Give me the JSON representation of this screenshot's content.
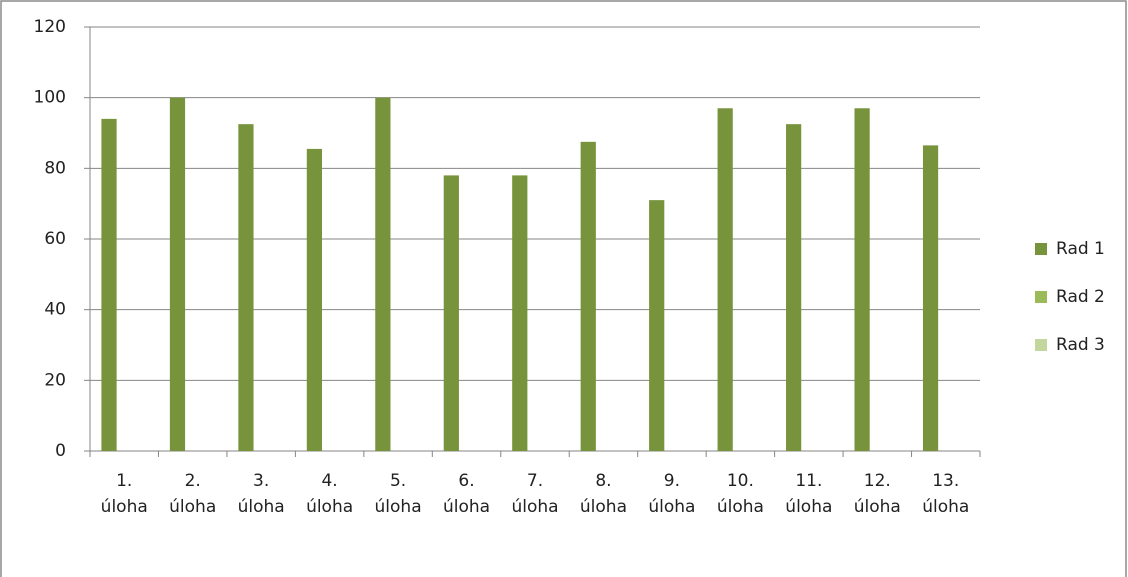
{
  "chart_data": {
    "type": "bar",
    "categories": [
      "1. úloha",
      "2. úloha",
      "3. úloha",
      "4. úloha",
      "5. úloha",
      "6. úloha",
      "7. úloha",
      "8. úloha",
      "9. úloha",
      "10. úloha",
      "11. úloha",
      "12. úloha",
      "13. úloha"
    ],
    "series": [
      {
        "name": "Rad 1",
        "color": "#77933c",
        "values": [
          94,
          100,
          92.5,
          85.5,
          100,
          78,
          78,
          87.5,
          71,
          97,
          92.5,
          97,
          86.5
        ]
      },
      {
        "name": "Rad 2",
        "color": "#9bbb59",
        "values": [
          null,
          null,
          null,
          null,
          null,
          null,
          null,
          null,
          null,
          null,
          null,
          null,
          null
        ]
      },
      {
        "name": "Rad 3",
        "color": "#c3d69b",
        "values": [
          null,
          null,
          null,
          null,
          null,
          null,
          null,
          null,
          null,
          null,
          null,
          null,
          null
        ]
      }
    ],
    "ylim": [
      0,
      120
    ],
    "yticks": [
      0,
      20,
      40,
      60,
      80,
      100,
      120
    ],
    "grid": true,
    "legend": "right"
  }
}
